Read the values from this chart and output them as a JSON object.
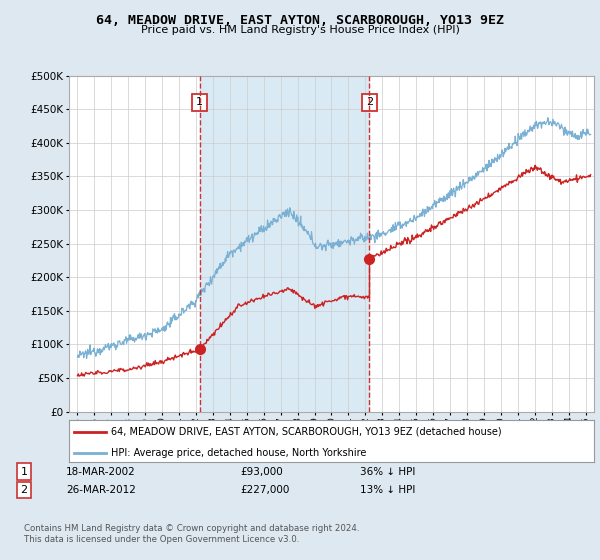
{
  "title": "64, MEADOW DRIVE, EAST AYTON, SCARBOROUGH, YO13 9EZ",
  "subtitle": "Price paid vs. HM Land Registry's House Price Index (HPI)",
  "legend_line1": "64, MEADOW DRIVE, EAST AYTON, SCARBOROUGH, YO13 9EZ (detached house)",
  "legend_line2": "HPI: Average price, detached house, North Yorkshire",
  "annotation1_label": "1",
  "annotation1_date": "18-MAR-2002",
  "annotation1_price": "£93,000",
  "annotation1_hpi": "36% ↓ HPI",
  "annotation2_label": "2",
  "annotation2_date": "26-MAR-2012",
  "annotation2_price": "£227,000",
  "annotation2_hpi": "13% ↓ HPI",
  "footnote1": "Contains HM Land Registry data © Crown copyright and database right 2024.",
  "footnote2": "This data is licensed under the Open Government Licence v3.0.",
  "purchase1_year": 2002.21,
  "purchase1_value": 93000,
  "purchase2_year": 2012.23,
  "purchase2_value": 227000,
  "purchase2_prev_value": 170000,
  "vline1_year": 2002.21,
  "vline2_year": 2012.23,
  "hpi_line_color": "#7ab0d4",
  "property_line_color": "#cc2222",
  "vline_color": "#cc3333",
  "shade_color": "#daeaf5",
  "background_color": "#dde8f0",
  "plot_bg_color": "#ffffff",
  "ylim": [
    0,
    500000
  ],
  "yticks": [
    0,
    50000,
    100000,
    150000,
    200000,
    250000,
    300000,
    350000,
    400000,
    450000,
    500000
  ],
  "xlim_start": 1994.5,
  "xlim_end": 2025.5,
  "xticks": [
    1995,
    1996,
    1997,
    1998,
    1999,
    2000,
    2001,
    2002,
    2003,
    2004,
    2005,
    2006,
    2007,
    2008,
    2009,
    2010,
    2011,
    2012,
    2013,
    2014,
    2015,
    2016,
    2017,
    2018,
    2019,
    2020,
    2021,
    2022,
    2023,
    2024,
    2025
  ]
}
